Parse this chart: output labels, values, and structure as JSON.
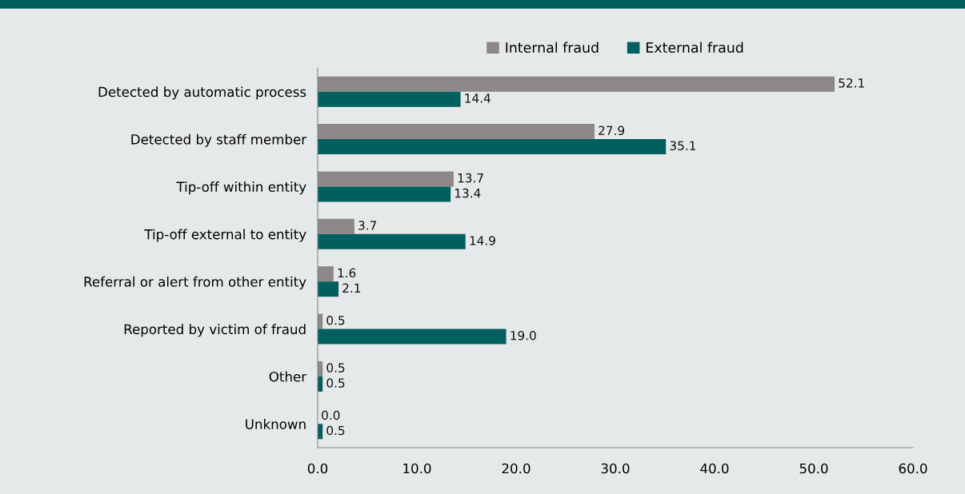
{
  "chart_data": {
    "type": "bar",
    "orientation": "horizontal",
    "categories": [
      "Detected by automatic process",
      "Detected by staff member",
      "Tip-off within entity",
      "Tip-off external to entity",
      "Referral or alert from other entity",
      "Reported by victim of fraud",
      "Other",
      "Unknown"
    ],
    "series": [
      {
        "name": "Internal fraud",
        "color": "#8c8888",
        "values": [
          52.1,
          27.9,
          13.7,
          3.7,
          1.6,
          0.5,
          0.5,
          0.0
        ],
        "value_labels": [
          "52.1",
          "27.9",
          "13.7",
          "3.7",
          "1.6",
          "0.5",
          "0.5",
          "0.0"
        ]
      },
      {
        "name": "External fraud",
        "color": "#005f5f",
        "values": [
          14.4,
          35.1,
          13.4,
          14.9,
          2.1,
          19.0,
          0.5,
          0.5
        ],
        "value_labels": [
          "14.4",
          "35.1",
          "13.4",
          "14.9",
          "2.1",
          "19.0",
          "0.5",
          "0.5"
        ]
      }
    ],
    "xlim": [
      0,
      60
    ],
    "xticks": [
      {
        "value": 0,
        "label": "0.0"
      },
      {
        "value": 10,
        "label": "10.0"
      },
      {
        "value": 20,
        "label": "20.0"
      },
      {
        "value": 30,
        "label": "30.0"
      },
      {
        "value": 40,
        "label": "40.0"
      },
      {
        "value": 50,
        "label": "50.0"
      },
      {
        "value": 60,
        "label": "60.0"
      }
    ],
    "grid": false,
    "legend": "top"
  }
}
